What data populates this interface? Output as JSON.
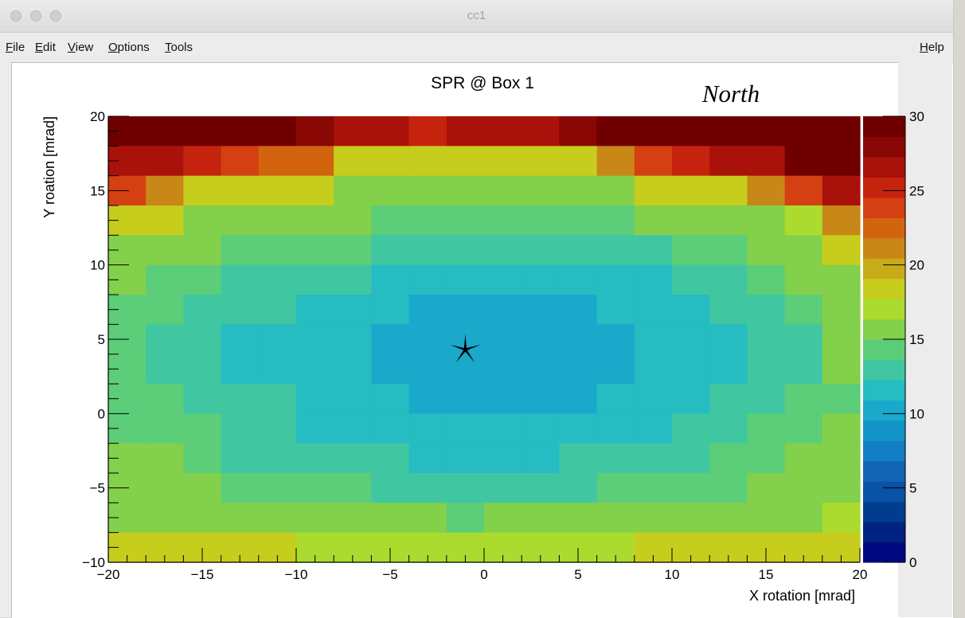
{
  "window": {
    "title": "cc1"
  },
  "menu": {
    "file": {
      "acc": "F",
      "rest": "ile"
    },
    "edit": {
      "acc": "E",
      "rest": "dit"
    },
    "view": {
      "acc": "V",
      "rest": "iew"
    },
    "options": {
      "acc": "O",
      "rest": "ptions"
    },
    "tools": {
      "acc": "T",
      "rest": "ools"
    },
    "help": {
      "acc": "H",
      "rest": "elp"
    }
  },
  "annotation": "North",
  "chart_data": {
    "type": "heatmap",
    "title": "SPR @ Box 1",
    "xlabel": "X rotation [mrad]",
    "ylabel": "Y roation [mrad]",
    "xlim": [
      -20,
      20
    ],
    "ylim": [
      -10,
      20
    ],
    "zlim": [
      0,
      30
    ],
    "x_ticks": [
      -20,
      -15,
      -10,
      -5,
      0,
      5,
      10,
      15,
      20
    ],
    "x_tick_labels": [
      "−20",
      "−15",
      "−10",
      "−5",
      "0",
      "5",
      "10",
      "15",
      "20"
    ],
    "y_ticks": [
      -10,
      -5,
      0,
      5,
      10,
      15,
      20
    ],
    "y_tick_labels": [
      "−10",
      "−5",
      "0",
      "5",
      "10",
      "15",
      "20"
    ],
    "z_ticks": [
      0,
      5,
      10,
      15,
      20,
      25,
      30
    ],
    "z_tick_labels": [
      "0",
      "5",
      "10",
      "15",
      "20",
      "25",
      "30"
    ],
    "x_bin_edges": [
      -20,
      -18,
      -16,
      -14,
      -12,
      -10,
      -8,
      -6,
      -4,
      -2,
      0,
      2,
      4,
      6,
      8,
      10,
      12,
      14,
      16,
      18,
      20
    ],
    "y_bin_edges": [
      -10,
      -8,
      -6,
      -4,
      -2,
      0,
      2,
      4,
      6,
      8,
      10,
      12,
      14,
      16,
      18,
      20
    ],
    "z_rows_top_to_bottom": [
      [
        30,
        30,
        30,
        30,
        29,
        28,
        27,
        27,
        25,
        26,
        26,
        26,
        28,
        29,
        30,
        30,
        30,
        30,
        30,
        30
      ],
      [
        27,
        26,
        25,
        24,
        22,
        22,
        19,
        19,
        19,
        19,
        19,
        19,
        19,
        21,
        24,
        25,
        26,
        27,
        30,
        30
      ],
      [
        24,
        21,
        19,
        18,
        18,
        18,
        16,
        16,
        16,
        16,
        16,
        16,
        16,
        16,
        18,
        18,
        19,
        21,
        24,
        27
      ],
      [
        18,
        18,
        16,
        16,
        15,
        15,
        15,
        14,
        14,
        14,
        14,
        14,
        14,
        14,
        15,
        15,
        16,
        16,
        17,
        21
      ],
      [
        16,
        15,
        15,
        14,
        14,
        14,
        14,
        13,
        13,
        13,
        13,
        13,
        13,
        13,
        13,
        14,
        14,
        15,
        16,
        18
      ],
      [
        15,
        14,
        14,
        13,
        13,
        13,
        13,
        11,
        11,
        11,
        11,
        11,
        11,
        11,
        11,
        13,
        13,
        14,
        15,
        16
      ],
      [
        14,
        14,
        13,
        13,
        13,
        11,
        11,
        11,
        10,
        10,
        10,
        10,
        10,
        11,
        11,
        11,
        13,
        13,
        14,
        15
      ],
      [
        14,
        13,
        13,
        11,
        11,
        11,
        11,
        10,
        10,
        10,
        10,
        10,
        10,
        10,
        11,
        11,
        11,
        13,
        13,
        15
      ],
      [
        14,
        13,
        13,
        11,
        11,
        11,
        11,
        10,
        10,
        10,
        10,
        10,
        10,
        10,
        11,
        11,
        11,
        13,
        13,
        15
      ],
      [
        14,
        14,
        13,
        13,
        13,
        11,
        11,
        11,
        10,
        10,
        10,
        10,
        10,
        11,
        11,
        11,
        13,
        13,
        14,
        14
      ],
      [
        14,
        14,
        14,
        13,
        13,
        11,
        11,
        11,
        11,
        11,
        11,
        11,
        11,
        11,
        11,
        13,
        13,
        14,
        14,
        15
      ],
      [
        15,
        15,
        14,
        13,
        13,
        13,
        13,
        13,
        11,
        11,
        11,
        11,
        13,
        13,
        13,
        13,
        14,
        14,
        15,
        15
      ],
      [
        15,
        15,
        15,
        14,
        14,
        14,
        14,
        13,
        13,
        13,
        13,
        13,
        13,
        14,
        14,
        14,
        14,
        15,
        15,
        16
      ],
      [
        16,
        16,
        15,
        15,
        15,
        15,
        15,
        15,
        15,
        14,
        15,
        15,
        15,
        15,
        15,
        15,
        15,
        16,
        16,
        17
      ],
      [
        19,
        19,
        18,
        18,
        18,
        17,
        17,
        17,
        17,
        17,
        17,
        17,
        17,
        17,
        18,
        18,
        18,
        18,
        19,
        19
      ]
    ],
    "marker": {
      "shape": "star",
      "x": -1,
      "y": 4.3
    },
    "palette": [
      "#00087f",
      "#002280",
      "#003d8e",
      "#0a52a5",
      "#1264b5",
      "#127ec4",
      "#1394c6",
      "#1aa8cb",
      "#25bcc2",
      "#40c7a2",
      "#5ccd78",
      "#83d04a",
      "#abdb2e",
      "#c7cd1c",
      "#c8ab19",
      "#c98717",
      "#d3640f",
      "#d54012",
      "#c6230f",
      "#a9120a",
      "#890704",
      "#700000"
    ]
  }
}
